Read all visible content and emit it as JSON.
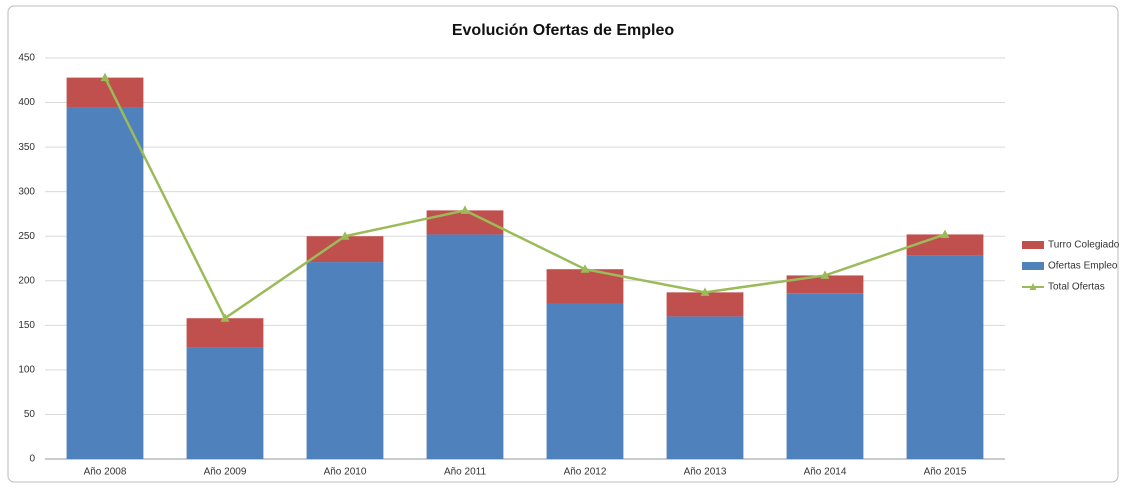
{
  "chart_data": {
    "type": "bar",
    "title": "Evolución Ofertas de Empleo",
    "categories": [
      "Año 2008",
      "Año 2009",
      "Año 2010",
      "Año 2011",
      "Año 2012",
      "Año 2013",
      "Año 2014",
      "Año 2015"
    ],
    "series": [
      {
        "name": "Turro Colegiado",
        "color": "#c0504d",
        "values": [
          34,
          33,
          29,
          27,
          39,
          27,
          20,
          24
        ]
      },
      {
        "name": "Ofertas Empleo",
        "color": "#4f81bd",
        "values": [
          394,
          125,
          221,
          252,
          174,
          160,
          186,
          228
        ]
      },
      {
        "name": "Total Ofertas",
        "color": "#9bbb59",
        "type": "line",
        "values": [
          428,
          158,
          250,
          279,
          213,
          187,
          206,
          252
        ]
      }
    ],
    "ylim": [
      0,
      450
    ],
    "yticks": [
      0,
      50,
      100,
      150,
      200,
      250,
      300,
      350,
      400,
      450
    ],
    "grid": true,
    "legend": "right"
  }
}
